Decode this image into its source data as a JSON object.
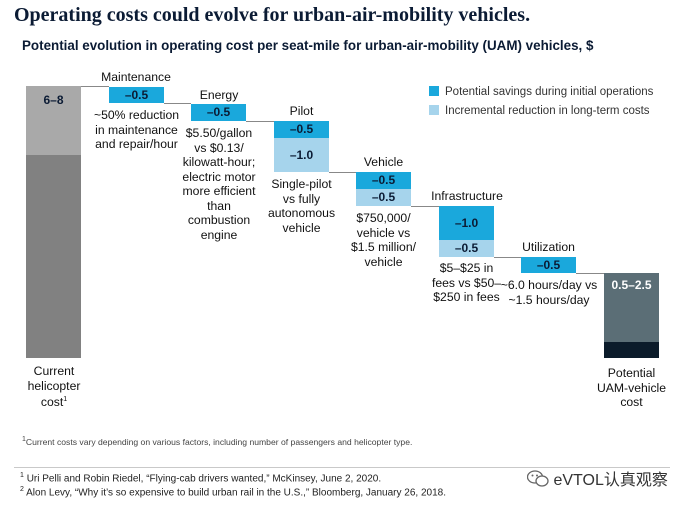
{
  "header": {
    "title": "Operating costs could evolve for urban-air-mobility vehicles.",
    "subtitle": "Potential evolution in operating cost per seat-mile for urban-air-mobility (UAM) vehicles, $"
  },
  "legend": {
    "initial": "Potential savings during initial operations",
    "longterm": "Incremental reduction in long-term costs"
  },
  "colors": {
    "initial": "#1aa8dc",
    "longterm": "#a6d4ec",
    "current_top": "#a9a9a9",
    "current_bottom": "#818181",
    "uam_top": "#5b6e76",
    "uam_bottom": "#0b1b2a",
    "connector": "#888888"
  },
  "chart_data": {
    "type": "bar",
    "subtype": "waterfall",
    "categories": [
      "Current helicopter cost",
      "Maintenance",
      "Energy",
      "Pilot",
      "Vehicle",
      "Infrastructure",
      "Utilization",
      "Potential UAM-vehicle cost"
    ],
    "start": {
      "label": "6–8",
      "range": [
        6,
        8
      ]
    },
    "end": {
      "label": "0.5–2.5",
      "range": [
        0.5,
        2.5
      ]
    },
    "series": [
      {
        "name": "Potential savings during initial operations",
        "values": [
          null,
          -0.5,
          -0.5,
          -0.5,
          -0.5,
          -1.0,
          -0.5,
          null
        ]
      },
      {
        "name": "Incremental reduction in long-term costs",
        "values": [
          null,
          0,
          0,
          -1.0,
          -0.5,
          -0.5,
          0,
          null
        ]
      }
    ]
  },
  "categories": {
    "current": "Current helicopter cost",
    "current_note_marker": "1",
    "maintenance": "Maintenance",
    "energy": "Energy",
    "pilot": "Pilot",
    "vehicle": "Vehicle",
    "infrastructure": "Infrastructure",
    "utilization": "Utilization",
    "uam": "Potential UAM-vehicle cost"
  },
  "bar_labels": {
    "current": "6–8",
    "maintenance_initial": "–0.5",
    "energy_initial": "–0.5",
    "pilot_initial": "–0.5",
    "pilot_longterm": "–1.0",
    "vehicle_initial": "–0.5",
    "vehicle_longterm": "–0.5",
    "infra_initial": "–1.0",
    "infra_longterm": "–0.5",
    "util_initial": "–0.5",
    "uam": "0.5–2.5"
  },
  "annotations": {
    "maintenance": "~50% reduction in maintenance and repair/hour",
    "energy": "$5.50/gallon vs $0.13/ kilowatt-hour; electric motor more efficient than combustion engine",
    "pilot": "Single-pilot vs fully autonomous vehicle",
    "vehicle": "$750,000/ vehicle vs $1.5 million/ vehicle",
    "infrastructure": "$5–$25 in fees vs $50–$250 in fees",
    "utilization": "~6.0 hours/day vs ~1.5 hours/day"
  },
  "footnotes": {
    "chart_note": "Current costs vary depending on various factors, including number of passengers and helicopter type.",
    "chart_note_marker": "1",
    "ref1_marker": "1",
    "ref1": "Uri Pelli and Robin Riedel, “Flying-cab drivers wanted,” McKinsey, June 2, 2020.",
    "ref2_marker": "2",
    "ref2": "Alon Levy, “Why it’s so expensive to build urban rail in the U.S.,” Bloomberg, January 26, 2018."
  },
  "watermark": "eVTOL认真观察"
}
